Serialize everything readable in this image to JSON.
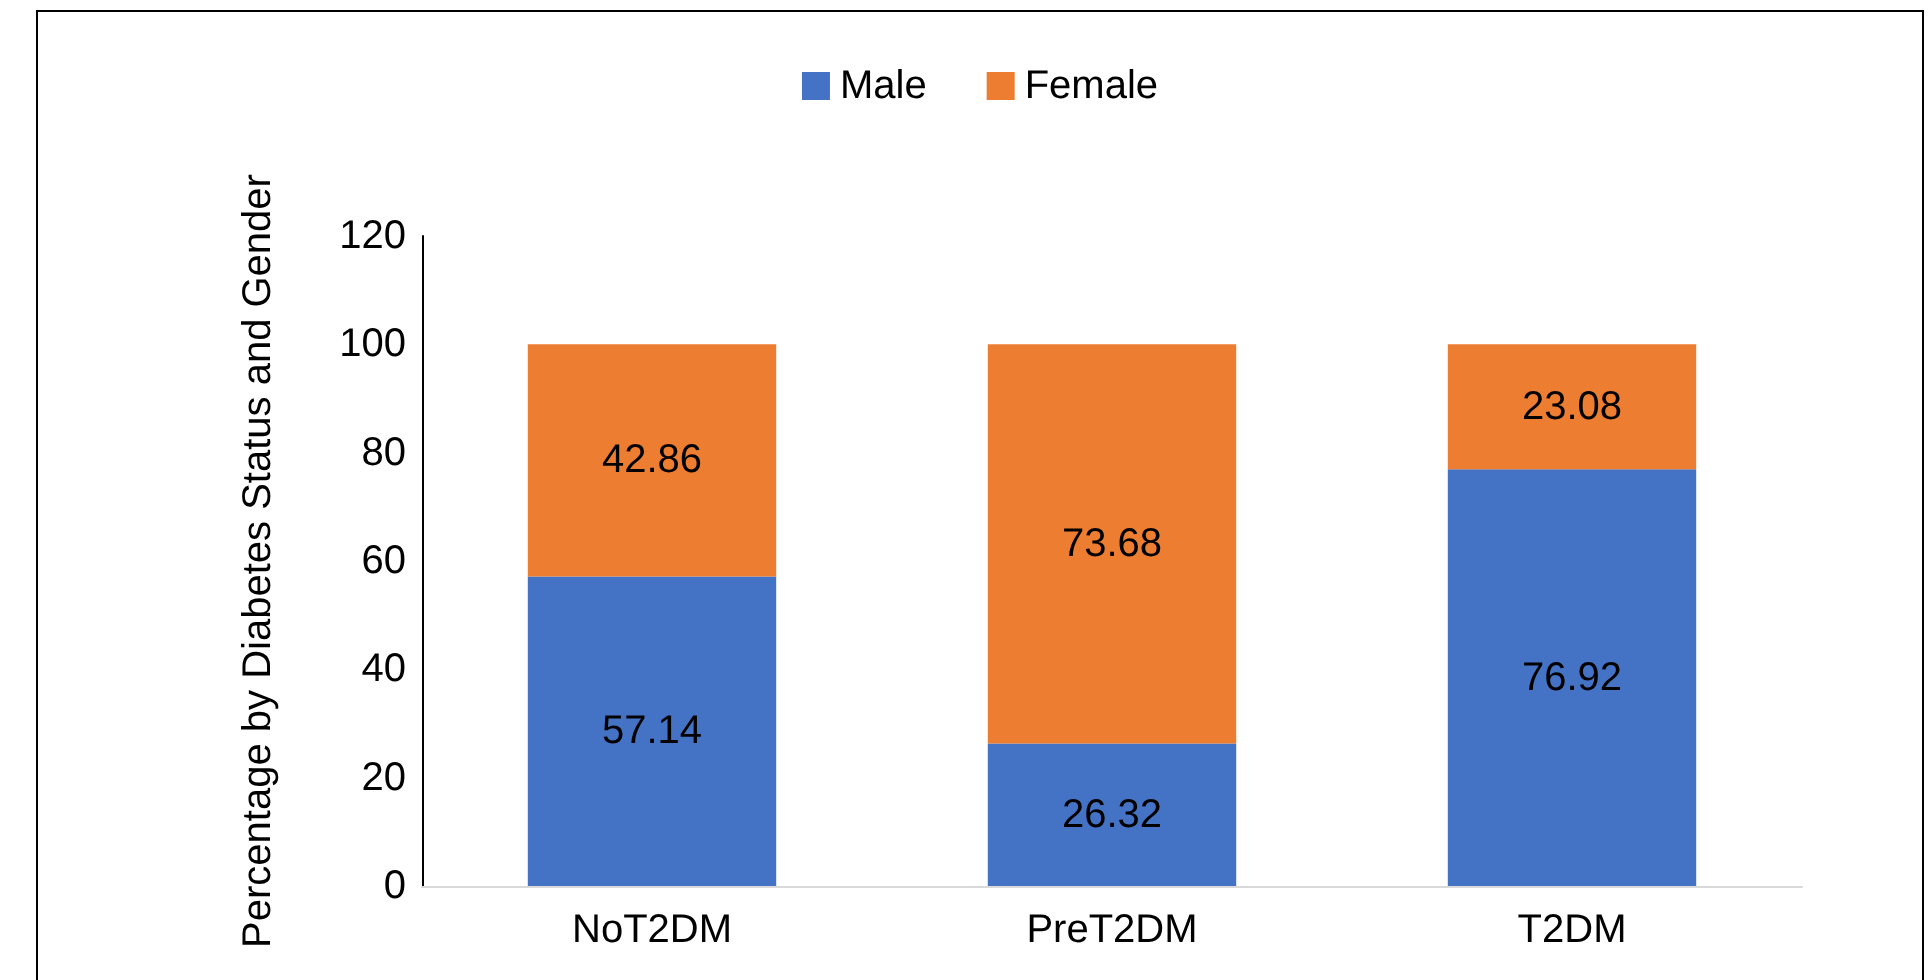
{
  "chart_data": {
    "type": "bar",
    "stacked": true,
    "ylabel": "Percentage by Diabetes Status and Gender",
    "categories": [
      "NoT2DM",
      "PreT2DM",
      "T2DM"
    ],
    "series": [
      {
        "name": "Male",
        "color": "#4472c4",
        "values": [
          57.14,
          26.32,
          76.92
        ]
      },
      {
        "name": "Female",
        "color": "#ed7d31",
        "values": [
          42.86,
          73.68,
          23.08
        ]
      }
    ],
    "ylim": [
      0,
      120
    ],
    "yticks": [
      0,
      20,
      40,
      60,
      80,
      100,
      120
    ],
    "data_labels": true,
    "grid": false,
    "legend": "top"
  }
}
